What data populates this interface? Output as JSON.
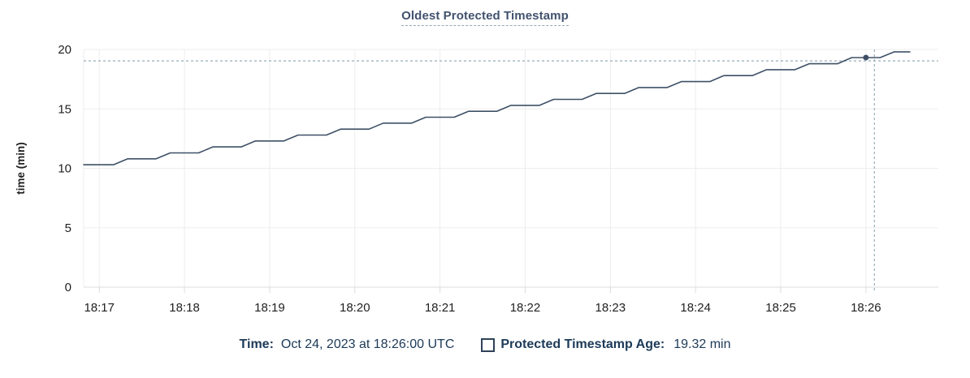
{
  "title": "Oldest Protected Timestamp",
  "colors": {
    "line": "#3e5067",
    "dot": "#3e5067",
    "title_text": "#41526e",
    "legend_text": "#1c3a58",
    "crosshair": "#9fb4c1",
    "grid": "#ededed",
    "axis": "#dcdcdc",
    "tick_text": "#1f1f1f"
  },
  "chart_data": {
    "type": "line",
    "title": "Oldest Protected Timestamp",
    "xlabel": "",
    "ylabel": "time (min)",
    "ylim": [
      0,
      20
    ],
    "yticks": [
      0,
      5,
      10,
      15,
      20
    ],
    "grid": true,
    "legend_position": "bottom",
    "x_domain": [
      "18:16:49",
      "18:26:51"
    ],
    "x_domain_seconds": 602,
    "xticks": [
      {
        "t": 11,
        "label": "18:17"
      },
      {
        "t": 71,
        "label": "18:18"
      },
      {
        "t": 131,
        "label": "18:19"
      },
      {
        "t": 191,
        "label": "18:20"
      },
      {
        "t": 251,
        "label": "18:21"
      },
      {
        "t": 311,
        "label": "18:22"
      },
      {
        "t": 371,
        "label": "18:23"
      },
      {
        "t": 431,
        "label": "18:24"
      },
      {
        "t": 491,
        "label": "18:25"
      },
      {
        "t": 551,
        "label": "18:26"
      }
    ],
    "series": [
      {
        "name": "Protected Timestamp Age",
        "points": [
          [
            0,
            10.3
          ],
          [
            21,
            10.3
          ],
          [
            31,
            10.8
          ],
          [
            51,
            10.8
          ],
          [
            61,
            11.3
          ],
          [
            81,
            11.3
          ],
          [
            91,
            11.8
          ],
          [
            111,
            11.8
          ],
          [
            121,
            12.3
          ],
          [
            141,
            12.3
          ],
          [
            151,
            12.8
          ],
          [
            171,
            12.8
          ],
          [
            181,
            13.3
          ],
          [
            201,
            13.3
          ],
          [
            211,
            13.8
          ],
          [
            231,
            13.8
          ],
          [
            241,
            14.3
          ],
          [
            261,
            14.3
          ],
          [
            271,
            14.8
          ],
          [
            291,
            14.8
          ],
          [
            301,
            15.3
          ],
          [
            321,
            15.3
          ],
          [
            331,
            15.8
          ],
          [
            351,
            15.8
          ],
          [
            361,
            16.3
          ],
          [
            381,
            16.3
          ],
          [
            391,
            16.8
          ],
          [
            411,
            16.8
          ],
          [
            421,
            17.3
          ],
          [
            441,
            17.3
          ],
          [
            451,
            17.8
          ],
          [
            471,
            17.8
          ],
          [
            481,
            18.3
          ],
          [
            501,
            18.3
          ],
          [
            511,
            18.8
          ],
          [
            531,
            18.8
          ],
          [
            541,
            19.32
          ],
          [
            561,
            19.32
          ],
          [
            571,
            19.8
          ],
          [
            582,
            19.8
          ]
        ]
      }
    ],
    "hover": {
      "time": "18:26:00",
      "t": 551,
      "value": 19.32,
      "crosshair_t": 557,
      "crosshair_value": 19.04
    }
  },
  "tooltip": {
    "time_label": "Time:",
    "time_value": "Oct 24, 2023 at 18:26:00 UTC",
    "series_label": "Protected Timestamp Age:",
    "series_value": "19.32 min"
  }
}
